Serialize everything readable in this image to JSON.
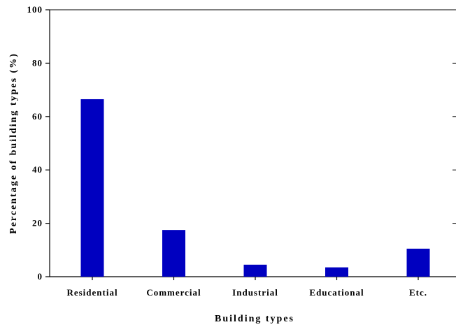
{
  "chart_data": {
    "type": "bar",
    "title": "",
    "xlabel": "Building types",
    "ylabel": "Percentage of building types (%)",
    "categories": [
      "Residential",
      "Commercial",
      "Industrial",
      "Educational",
      "Etc."
    ],
    "values": [
      66.5,
      17.5,
      4.5,
      3.5,
      10.5
    ],
    "ylim": [
      0,
      100
    ],
    "yticks": [
      "0",
      "20",
      "40",
      "60",
      "80",
      "100"
    ],
    "bar_color": "#0000c0",
    "grid": false,
    "legend": "none"
  }
}
